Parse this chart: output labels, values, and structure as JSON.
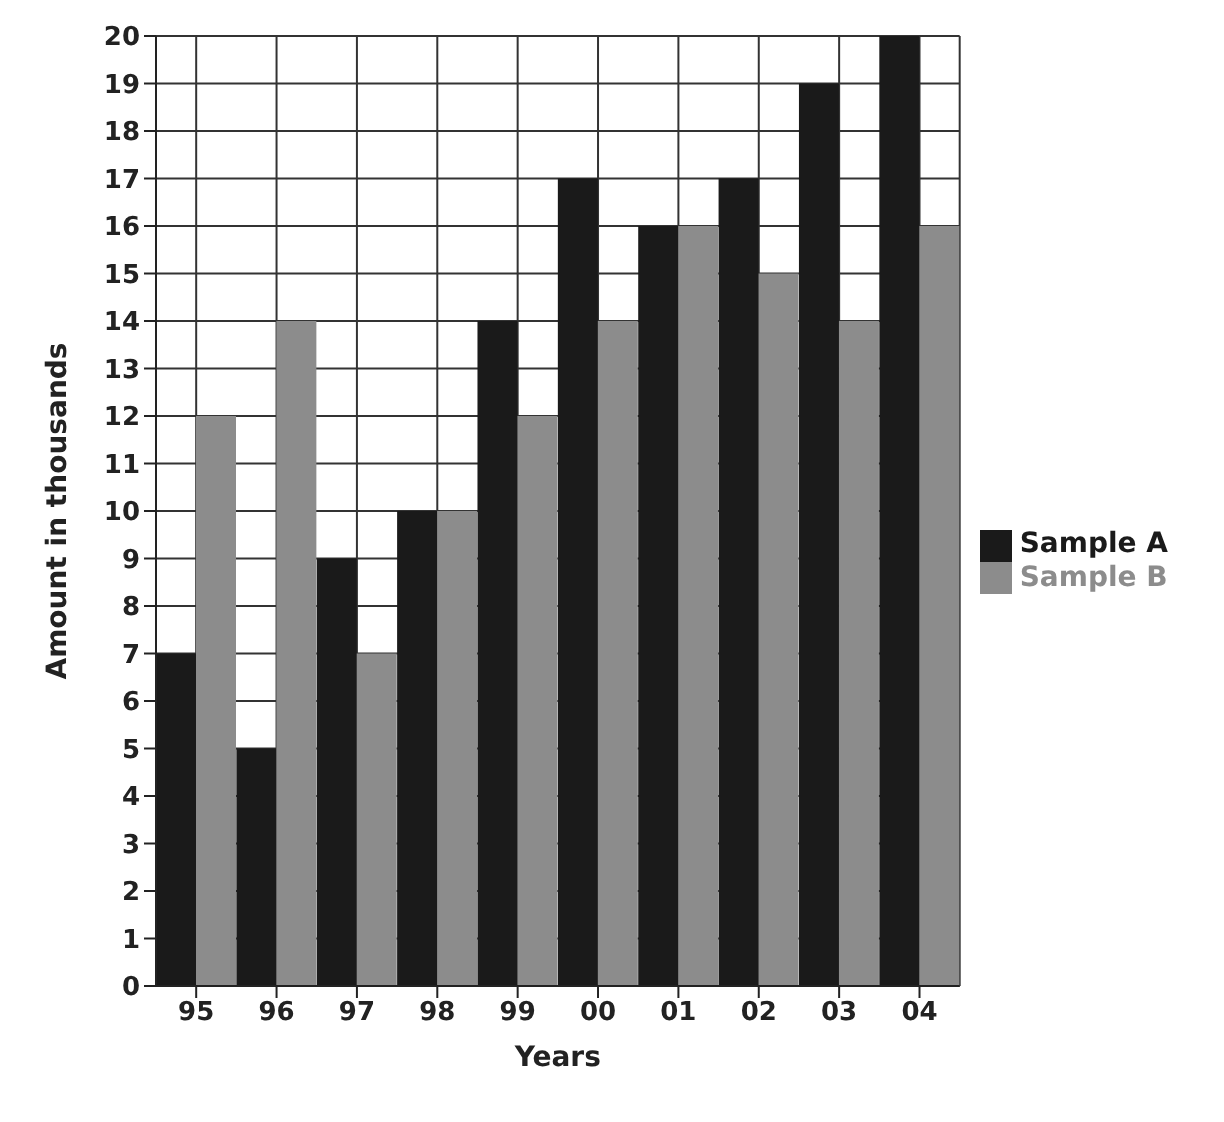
{
  "chart_data": {
    "type": "bar",
    "xlabel": "Years",
    "ylabel": "Amount in thousands",
    "categories": [
      "95",
      "96",
      "97",
      "98",
      "99",
      "00",
      "01",
      "02",
      "03",
      "04"
    ],
    "series": [
      {
        "name": "Sample A",
        "color": "#1a1a1a",
        "values": [
          7,
          5,
          9,
          10,
          14,
          17,
          16,
          17,
          19,
          20
        ]
      },
      {
        "name": "Sample B",
        "color": "#8c8c8c",
        "values": [
          12,
          14,
          7,
          10,
          12,
          14,
          16,
          15,
          14,
          16
        ]
      }
    ],
    "ylim": [
      0,
      20
    ],
    "yticks": [
      0,
      1,
      2,
      3,
      4,
      5,
      6,
      7,
      8,
      9,
      10,
      11,
      12,
      13,
      14,
      15,
      16,
      17,
      18,
      19,
      20
    ],
    "grid": true,
    "legend": "right"
  }
}
